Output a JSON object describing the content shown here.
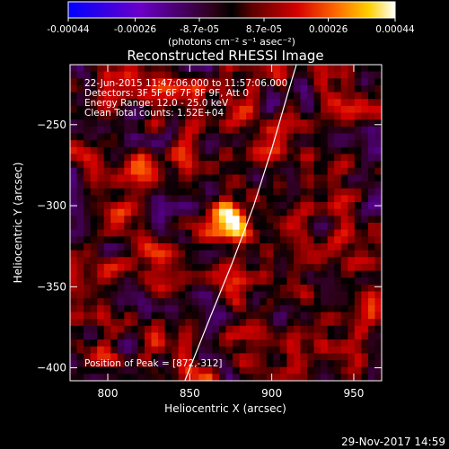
{
  "chart_data": {
    "type": "heatmap",
    "title": "Reconstructed RHESSI Image",
    "xlabel": "Heliocentric X (arcsec)",
    "ylabel": "Heliocentric Y (arcsec)",
    "xlim": [
      777,
      967
    ],
    "ylim": [
      -408,
      -213
    ],
    "x_ticks": [
      800,
      850,
      900,
      950
    ],
    "y_ticks": [
      -250,
      -300,
      -350,
      -400
    ],
    "x_tick_labels": [
      "800",
      "850",
      "900",
      "950"
    ],
    "y_tick_labels": [
      "−250",
      "−300",
      "−350",
      "−400"
    ],
    "colorbar": {
      "tick_values": [
        -0.00044,
        -0.00026,
        -8.7e-05,
        8.7e-05,
        0.00026,
        0.00044
      ],
      "tick_labels": [
        "-0.00044",
        "-0.00026",
        "-8.7e-05",
        "8.7e-05",
        "0.00026",
        "0.00044"
      ],
      "unit_label": "(photons cm⁻² s⁻¹ asec⁻²)",
      "range": [
        -0.00044,
        0.00044
      ]
    },
    "annotations": [
      "22-Jun-2015 11:47:06.000 to 11:57:06.000",
      "Detectors: 3F 5F 6F 7F 8F 9F, Att 0",
      "Energy Range: 12.0 - 25.0 keV",
      "Clean     Total counts: 1.52E+04"
    ],
    "peak_label": "Position of Peak = [872,-312]",
    "peak": {
      "x": 872,
      "y": -312
    },
    "limb_curve": [
      [
        847,
        -408
      ],
      [
        862,
        -370
      ],
      [
        876,
        -335
      ],
      [
        889,
        -300
      ],
      [
        900,
        -265
      ],
      [
        910,
        -230
      ],
      [
        915,
        -213
      ]
    ]
  },
  "footer": {
    "date": "29-Nov-2017 14:59"
  }
}
